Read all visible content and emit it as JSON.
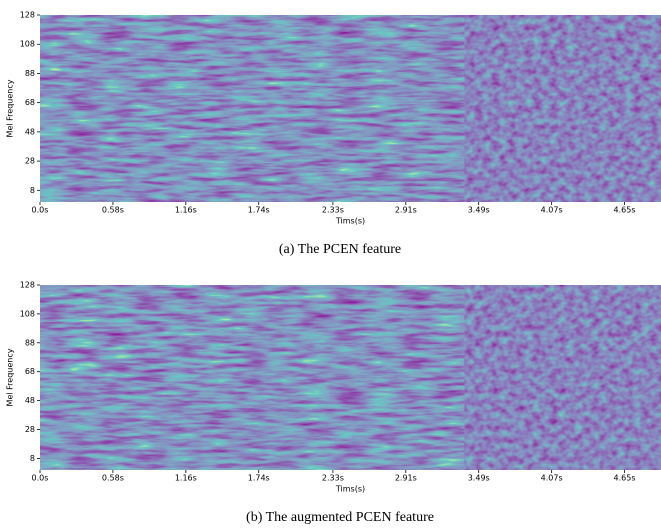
{
  "chart_data": [
    {
      "type": "heatmap",
      "caption": "(a) The PCEN feature",
      "xlabel": "Tims(s)",
      "ylabel": "Mel Frequency",
      "xlim": [
        0,
        4.94
      ],
      "ylim": [
        0,
        128
      ],
      "xticks": [
        {
          "value": 0,
          "label": "0.0s"
        },
        {
          "value": 0.58,
          "label": "0.58s"
        },
        {
          "value": 1.16,
          "label": "1.16s"
        },
        {
          "value": 1.74,
          "label": "1.74s"
        },
        {
          "value": 2.33,
          "label": "2.33s"
        },
        {
          "value": 2.91,
          "label": "2.91s"
        },
        {
          "value": 3.49,
          "label": "3.49s"
        },
        {
          "value": 4.07,
          "label": "4.07s"
        },
        {
          "value": 4.65,
          "label": "4.65s"
        }
      ],
      "yticks": [
        8,
        28,
        48,
        68,
        88,
        108,
        128
      ]
    },
    {
      "type": "heatmap",
      "caption": "(b) The augmented PCEN feature",
      "xlabel": "Tims(s)",
      "ylabel": "Mel Frequency",
      "xlim": [
        0,
        4.94
      ],
      "ylim": [
        0,
        128
      ],
      "xticks": [
        {
          "value": 0,
          "label": "0.0s"
        },
        {
          "value": 0.58,
          "label": "0.58s"
        },
        {
          "value": 1.16,
          "label": "1.16s"
        },
        {
          "value": 1.74,
          "label": "1.74s"
        },
        {
          "value": 2.33,
          "label": "2.33s"
        },
        {
          "value": 2.91,
          "label": "2.91s"
        },
        {
          "value": 3.49,
          "label": "3.49s"
        },
        {
          "value": 4.07,
          "label": "4.07s"
        },
        {
          "value": 4.65,
          "label": "4.65s"
        }
      ],
      "yticks": [
        8,
        28,
        48,
        68,
        88,
        108,
        128
      ]
    }
  ]
}
